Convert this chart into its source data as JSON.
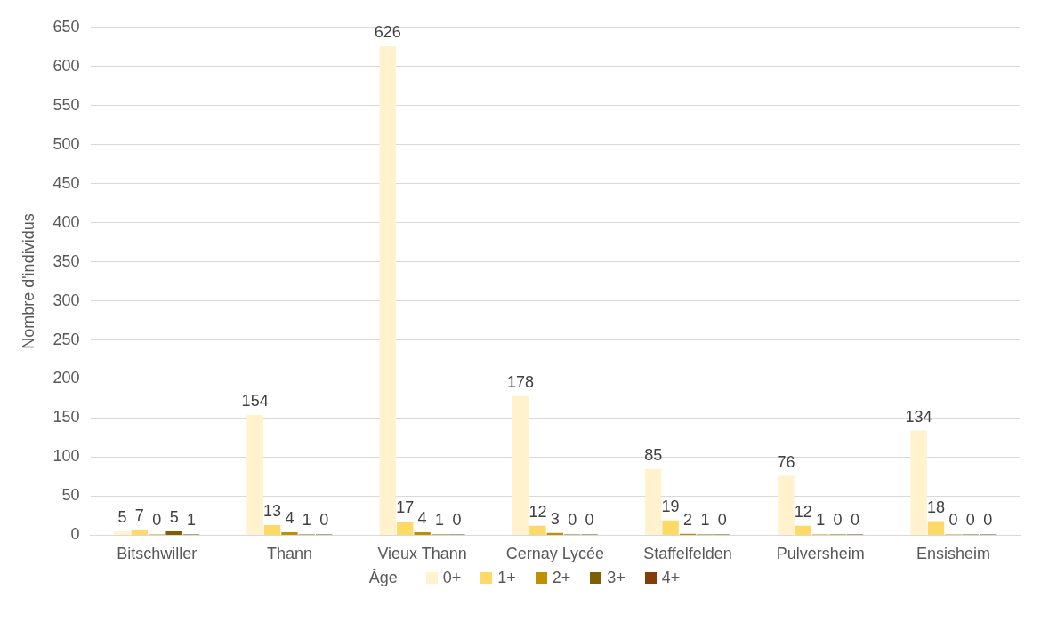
{
  "chart_data": {
    "type": "bar",
    "ylabel": "Nombre d'individus",
    "legend_title": "Âge",
    "categories": [
      "Bitschwiller",
      "Thann",
      "Vieux Thann",
      "Cernay Lycée",
      "Staffelfelden",
      "Pulversheim",
      "Ensisheim"
    ],
    "series": [
      {
        "name": "0+",
        "color": "#fff2cc",
        "values": [
          5,
          154,
          626,
          178,
          85,
          76,
          134
        ]
      },
      {
        "name": "1+",
        "color": "#ffd966",
        "values": [
          7,
          13,
          17,
          12,
          19,
          12,
          18
        ]
      },
      {
        "name": "2+",
        "color": "#bf9000",
        "values": [
          0,
          4,
          4,
          3,
          2,
          1,
          0
        ]
      },
      {
        "name": "3+",
        "color": "#7f6000",
        "values": [
          5,
          1,
          1,
          0,
          1,
          0,
          0
        ]
      },
      {
        "name": "4+",
        "color": "#843c0c",
        "values": [
          1,
          0,
          0,
          0,
          0,
          0,
          0
        ]
      }
    ],
    "ylim": [
      0,
      650
    ],
    "yticks": [
      0,
      50,
      100,
      150,
      200,
      250,
      300,
      350,
      400,
      450,
      500,
      550,
      600,
      650
    ],
    "grid": "y",
    "legend": "bottom",
    "data_labels": true
  }
}
